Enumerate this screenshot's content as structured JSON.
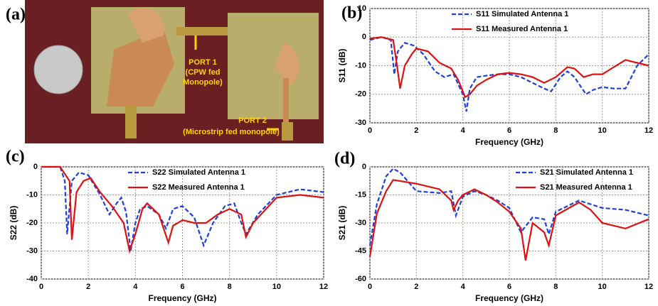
{
  "photo": {
    "panel_label": "(a)",
    "port1": [
      "PORT 1",
      "(CPW fed",
      "Monopole)"
    ],
    "port2": [
      "PORT 2",
      "(Microstrip fed monopole)"
    ]
  },
  "chart_data": [
    {
      "type": "line",
      "panel_label": "(b)",
      "xlabel": "Frequency (GHz)",
      "ylabel": "S11 (dB)",
      "xlim": [
        0,
        12
      ],
      "xticks": [
        0,
        2,
        4,
        6,
        8,
        10,
        12
      ],
      "ylim": [
        -30,
        10
      ],
      "yticks": [
        10,
        0,
        -10,
        -20,
        -30
      ],
      "grid": true,
      "legend": "upper right",
      "series": [
        {
          "name": "S11 Simulated Antenna 1",
          "color": "#1f3fe0",
          "dashed": true,
          "x": [
            0,
            0.5,
            0.9,
            1.05,
            1.2,
            1.5,
            1.9,
            2.3,
            2.8,
            3.2,
            3.6,
            4.0,
            4.15,
            4.3,
            4.6,
            5,
            5.5,
            6,
            6.5,
            7,
            7.5,
            7.8,
            8.2,
            8.5,
            8.8,
            9.3,
            9.6,
            10,
            10.5,
            11,
            11.5,
            12
          ],
          "values": [
            -1,
            0,
            -1,
            -13,
            -5,
            -2,
            -3,
            -6,
            -12,
            -14,
            -13,
            -20,
            -26,
            -18,
            -14,
            -13.5,
            -13,
            -13,
            -14,
            -16,
            -18,
            -19,
            -14,
            -12,
            -14,
            -20,
            -18.5,
            -17.5,
            -18,
            -18,
            -10,
            -6
          ]
        },
        {
          "name": "S11 Measured Antenna 1",
          "color": "#e01010",
          "dashed": false,
          "x": [
            0,
            0.5,
            1,
            1.15,
            1.3,
            1.5,
            1.8,
            2,
            2.5,
            3,
            3.5,
            3.8,
            4.1,
            4.3,
            4.6,
            5,
            5.5,
            6,
            6.5,
            7,
            7.5,
            8,
            8.5,
            8.8,
            9.2,
            9.6,
            10,
            10.4,
            11,
            11.5,
            12
          ],
          "values": [
            -0.5,
            0,
            -1,
            -9,
            -18,
            -10,
            -6,
            -4,
            -5,
            -9,
            -11,
            -15,
            -21,
            -20,
            -17,
            -15,
            -13,
            -12.5,
            -13,
            -14,
            -16,
            -14,
            -10.5,
            -11,
            -14,
            -13,
            -13,
            -11,
            -8,
            -9,
            -10
          ]
        }
      ]
    },
    {
      "type": "line",
      "panel_label": "(c)",
      "xlabel": "Frequency (GHz)",
      "ylabel": "S22 (dB)",
      "xlim": [
        0,
        12
      ],
      "xticks": [
        0,
        2,
        4,
        6,
        8,
        10,
        12
      ],
      "ylim": [
        -40,
        0
      ],
      "yticks": [
        0,
        -10,
        -20,
        -30,
        -40
      ],
      "grid": true,
      "legend": "upper center",
      "series": [
        {
          "name": "S22 Simulated Antenna 1",
          "color": "#1f3fe0",
          "dashed": true,
          "x": [
            0,
            0.8,
            1,
            1.1,
            1.3,
            1.6,
            2,
            2.5,
            2.9,
            3.2,
            3.4,
            3.6,
            3.8,
            4,
            4.2,
            4.5,
            5,
            5.3,
            5.6,
            6,
            6.5,
            6.9,
            7.3,
            7.8,
            8.2,
            8.5,
            8.7,
            9.2,
            10,
            11,
            12
          ],
          "values": [
            0,
            0,
            -5,
            -24,
            -5,
            -2,
            -3,
            -10,
            -17,
            -13,
            -11,
            -16,
            -30,
            -20,
            -15,
            -14,
            -17,
            -22,
            -15,
            -14,
            -18,
            -28,
            -20,
            -14,
            -13,
            -20,
            -24,
            -17,
            -10,
            -8,
            -9
          ]
        },
        {
          "name": "S22 Measured Antenna 1",
          "color": "#e01010",
          "dashed": false,
          "x": [
            0,
            0.8,
            1.2,
            1.3,
            1.5,
            1.8,
            2.1,
            2.5,
            3,
            3.5,
            3.75,
            4,
            4.3,
            4.5,
            5,
            5.4,
            5.6,
            6,
            6.5,
            7,
            7.5,
            8,
            8.5,
            8.7,
            9,
            10,
            11,
            12
          ],
          "values": [
            0,
            0,
            -5,
            -26,
            -9,
            -5,
            -4,
            -9,
            -14,
            -20,
            -30,
            -24,
            -15,
            -13,
            -17,
            -27,
            -21,
            -19,
            -20,
            -20,
            -17,
            -15,
            -17,
            -25,
            -20,
            -11,
            -10,
            -11
          ]
        }
      ]
    },
    {
      "type": "line",
      "panel_label": "(d)",
      "xlabel": "Frequency (GHz)",
      "ylabel": "S21 (dB)",
      "xlim": [
        0,
        12
      ],
      "xticks": [
        0,
        2,
        4,
        6,
        8,
        10,
        12
      ],
      "ylim": [
        -60,
        0
      ],
      "yticks": [
        0,
        -15,
        -30,
        -45,
        -60
      ],
      "grid": true,
      "legend": "upper center",
      "series": [
        {
          "name": "S21 Simulated Antenna 1",
          "color": "#1f3fe0",
          "dashed": true,
          "x": [
            0,
            0.3,
            0.7,
            1,
            1.3,
            2,
            3,
            3.5,
            3.7,
            4,
            4.5,
            5,
            5.5,
            6,
            6.5,
            7,
            7.5,
            7.7,
            8,
            9,
            10,
            11,
            12
          ],
          "values": [
            -42,
            -20,
            -5,
            -1,
            -3,
            -13,
            -14,
            -13,
            -26,
            -16,
            -13,
            -15,
            -18,
            -22,
            -35,
            -27,
            -28,
            -36,
            -24,
            -18,
            -22,
            -23,
            -26
          ]
        },
        {
          "name": "S21 Measured Antenna 1",
          "color": "#e01010",
          "dashed": false,
          "x": [
            0,
            0.3,
            0.7,
            1,
            2,
            3,
            3.5,
            3.6,
            3.8,
            4,
            4.5,
            5,
            5.5,
            6,
            6.5,
            6.7,
            7,
            7.5,
            7.7,
            8,
            9,
            9.5,
            10,
            11,
            12
          ],
          "values": [
            -48,
            -25,
            -13,
            -7,
            -9,
            -12,
            -18,
            -23,
            -18,
            -15,
            -12,
            -15,
            -19,
            -24,
            -33,
            -50,
            -30,
            -35,
            -42,
            -26,
            -19,
            -23,
            -30,
            -33,
            -28
          ]
        }
      ]
    }
  ]
}
